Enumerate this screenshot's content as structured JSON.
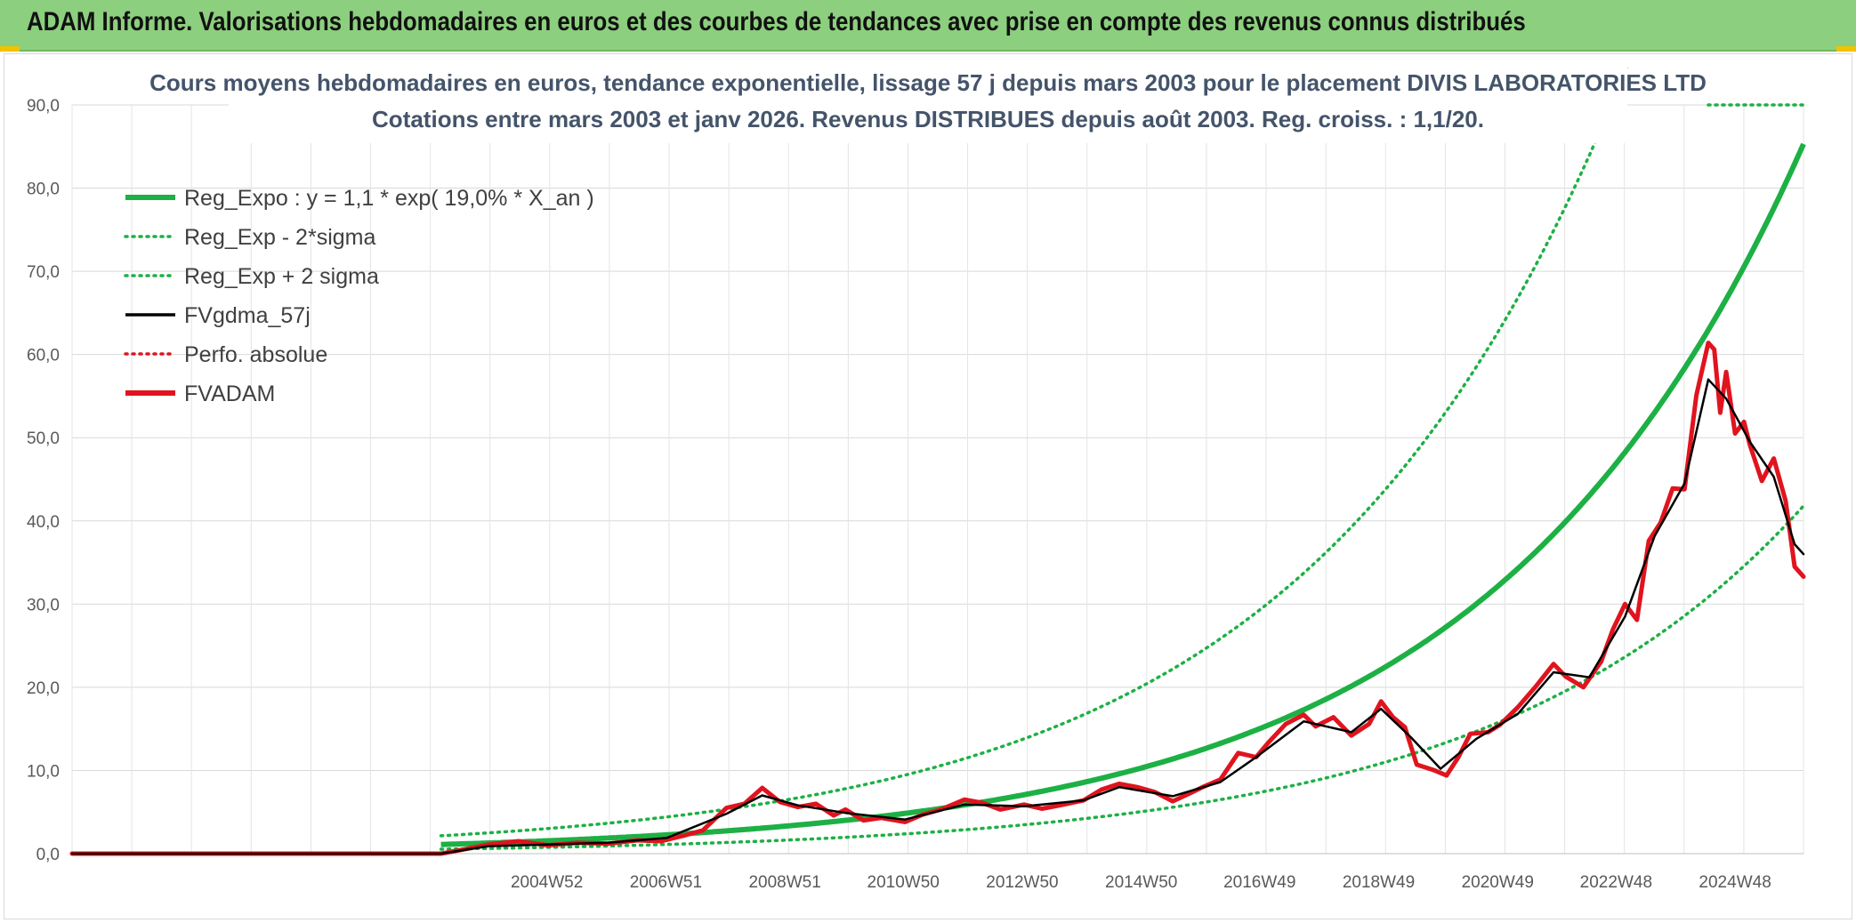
{
  "header": {
    "title": "ADAM Informe. Valorisations hebdomadaires en euros et des courbes de tendances avec prise en compte des revenus connus distribués",
    "background": "#8ccf7e"
  },
  "chart_data": {
    "type": "line",
    "title_line1": "Cours moyens hebdomadaires en euros, tendance exponentielle, lissage 57 j depuis mars 2003 pour le placement DIVIS LABORATORIES LTD",
    "title_line2": "Cotations entre mars 2003 et janv 2026. Revenus DISTRIBUES depuis août 2003. Reg. croiss. : 1,1/20.",
    "ylim": [
      0,
      90
    ],
    "y_ticks": [
      "0,0",
      "10,0",
      "20,0",
      "30,0",
      "40,0",
      "50,0",
      "60,0",
      "70,0",
      "80,0",
      "90,0"
    ],
    "x_range": [
      1997.0,
      2026.1
    ],
    "x_tick_labels": [
      "2004W52",
      "2006W51",
      "2008W51",
      "2010W50",
      "2012W50",
      "2014W50",
      "2016W49",
      "2018W49",
      "2020W49",
      "2022W48",
      "2024W48"
    ],
    "x_tick_years": [
      2004.98,
      2006.98,
      2008.98,
      2010.97,
      2012.97,
      2014.97,
      2016.96,
      2018.96,
      2020.96,
      2022.95,
      2024.95
    ],
    "regression": {
      "start": 2003.2,
      "a": 1.1,
      "rate": 0.19,
      "sigma_factor_upper": 1.95,
      "sigma_factor_lower": 0.49
    },
    "legend": [
      {
        "label": "Reg_Expo : y = 1,1 * exp( 19,0% *  X_an )",
        "color": "#1db045",
        "style": "solid-thick"
      },
      {
        "label": "Reg_Exp - 2*sigma",
        "color": "#1db045",
        "style": "dotted"
      },
      {
        "label": "Reg_Exp + 2 sigma",
        "color": "#1db045",
        "style": "dotted"
      },
      {
        "label": "FVgdma_57j",
        "color": "#000000",
        "style": "solid"
      },
      {
        "label": "Perfo. absolue",
        "color": "#e0141e",
        "style": "dotted"
      },
      {
        "label": "FVADAM",
        "color": "#e0141e",
        "style": "solid-thick"
      }
    ],
    "series": [
      {
        "name": "FVADAM",
        "color": "#e0141e",
        "points": [
          [
            1997.0,
            0
          ],
          [
            2003.2,
            0
          ],
          [
            2003.5,
            0.4
          ],
          [
            2004.0,
            1.1
          ],
          [
            2004.5,
            1.5
          ],
          [
            2005.0,
            1.0
          ],
          [
            2005.5,
            1.3
          ],
          [
            2006.0,
            1.2
          ],
          [
            2006.5,
            1.6
          ],
          [
            2006.9,
            1.5
          ],
          [
            2007.3,
            2.2
          ],
          [
            2007.6,
            2.8
          ],
          [
            2008.0,
            5.5
          ],
          [
            2008.3,
            6.0
          ],
          [
            2008.6,
            7.9
          ],
          [
            2008.9,
            6.2
          ],
          [
            2009.2,
            5.6
          ],
          [
            2009.5,
            6.0
          ],
          [
            2009.8,
            4.6
          ],
          [
            2010.0,
            5.3
          ],
          [
            2010.3,
            4.0
          ],
          [
            2010.6,
            4.3
          ],
          [
            2011.0,
            3.8
          ],
          [
            2011.3,
            4.7
          ],
          [
            2011.6,
            5.3
          ],
          [
            2012.0,
            6.5
          ],
          [
            2012.3,
            6.1
          ],
          [
            2012.6,
            5.3
          ],
          [
            2013.0,
            5.9
          ],
          [
            2013.3,
            5.4
          ],
          [
            2013.6,
            5.8
          ],
          [
            2014.0,
            6.4
          ],
          [
            2014.3,
            7.7
          ],
          [
            2014.6,
            8.4
          ],
          [
            2014.9,
            8.0
          ],
          [
            2015.2,
            7.4
          ],
          [
            2015.5,
            6.3
          ],
          [
            2015.8,
            7.3
          ],
          [
            2016.0,
            8.0
          ],
          [
            2016.3,
            8.9
          ],
          [
            2016.6,
            12.1
          ],
          [
            2016.9,
            11.6
          ],
          [
            2017.1,
            13.3
          ],
          [
            2017.4,
            15.6
          ],
          [
            2017.7,
            16.7
          ],
          [
            2017.9,
            15.3
          ],
          [
            2018.2,
            16.4
          ],
          [
            2018.5,
            14.2
          ],
          [
            2018.8,
            15.6
          ],
          [
            2019.0,
            18.3
          ],
          [
            2019.2,
            16.4
          ],
          [
            2019.4,
            15.2
          ],
          [
            2019.6,
            10.7
          ],
          [
            2019.9,
            10.0
          ],
          [
            2020.1,
            9.4
          ],
          [
            2020.3,
            11.6
          ],
          [
            2020.5,
            14.4
          ],
          [
            2020.8,
            14.6
          ],
          [
            2021.0,
            15.5
          ],
          [
            2021.3,
            17.6
          ],
          [
            2021.6,
            20.1
          ],
          [
            2021.9,
            22.8
          ],
          [
            2022.1,
            21.3
          ],
          [
            2022.4,
            20.0
          ],
          [
            2022.7,
            23.1
          ],
          [
            2022.9,
            27.0
          ],
          [
            2023.1,
            30.0
          ],
          [
            2023.3,
            28.1
          ],
          [
            2023.5,
            37.6
          ],
          [
            2023.7,
            39.8
          ],
          [
            2023.9,
            43.9
          ],
          [
            2024.1,
            43.8
          ],
          [
            2024.3,
            55.1
          ],
          [
            2024.5,
            61.4
          ],
          [
            2024.6,
            60.6
          ],
          [
            2024.7,
            53.0
          ],
          [
            2024.8,
            57.9
          ],
          [
            2024.95,
            50.5
          ],
          [
            2025.1,
            51.9
          ],
          [
            2025.2,
            49.1
          ],
          [
            2025.4,
            44.8
          ],
          [
            2025.6,
            47.5
          ],
          [
            2025.8,
            42.4
          ],
          [
            2025.95,
            34.5
          ],
          [
            2026.1,
            33.3
          ]
        ]
      },
      {
        "name": "FVgdma_57j",
        "color": "#000000",
        "points": [
          [
            1997.0,
            0
          ],
          [
            2003.2,
            0
          ],
          [
            2004.0,
            0.9
          ],
          [
            2005.0,
            1.1
          ],
          [
            2006.0,
            1.3
          ],
          [
            2007.0,
            1.9
          ],
          [
            2008.0,
            4.8
          ],
          [
            2008.6,
            7.0
          ],
          [
            2009.2,
            5.8
          ],
          [
            2010.0,
            4.9
          ],
          [
            2011.0,
            4.1
          ],
          [
            2012.0,
            5.9
          ],
          [
            2013.0,
            5.7
          ],
          [
            2014.0,
            6.4
          ],
          [
            2014.6,
            8.0
          ],
          [
            2015.5,
            6.9
          ],
          [
            2016.3,
            8.6
          ],
          [
            2016.9,
            11.6
          ],
          [
            2017.7,
            15.9
          ],
          [
            2018.5,
            14.6
          ],
          [
            2019.0,
            17.4
          ],
          [
            2019.5,
            14.0
          ],
          [
            2020.0,
            10.2
          ],
          [
            2020.6,
            13.8
          ],
          [
            2021.3,
            16.8
          ],
          [
            2021.9,
            21.8
          ],
          [
            2022.5,
            21.2
          ],
          [
            2023.1,
            28.5
          ],
          [
            2023.6,
            38.2
          ],
          [
            2024.1,
            44.5
          ],
          [
            2024.5,
            57.0
          ],
          [
            2024.8,
            54.7
          ],
          [
            2025.2,
            49.5
          ],
          [
            2025.6,
            45.3
          ],
          [
            2025.95,
            37.2
          ],
          [
            2026.1,
            36.0
          ]
        ]
      }
    ]
  }
}
